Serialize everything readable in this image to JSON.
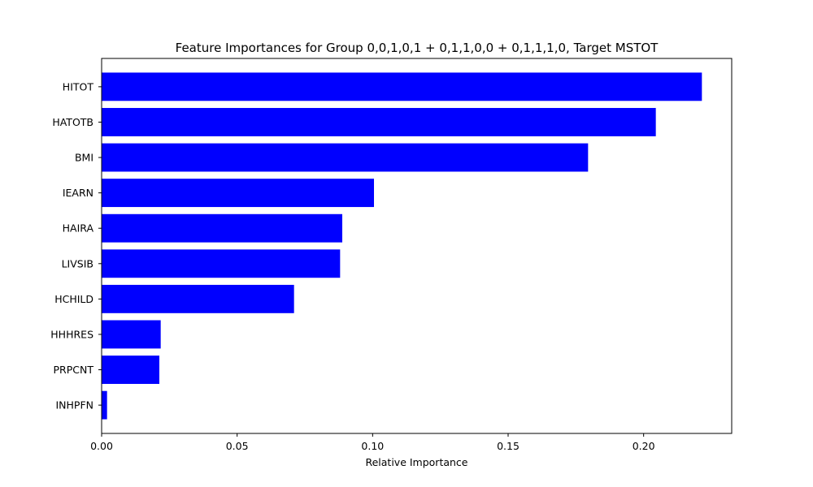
{
  "chart_data": {
    "type": "bar",
    "orientation": "horizontal",
    "title": "Feature Importances for Group 0,0,1,0,1 + 0,1,1,0,0 + 0,1,1,1,0, Target MSTOT",
    "xlabel": "Relative Importance",
    "ylabel": "",
    "categories": [
      "HITOT",
      "HATOTB",
      "BMI",
      "IEARN",
      "HAIRA",
      "LIVSIB",
      "HCHILD",
      "HHHRES",
      "PRPCNT",
      "INHPFN"
    ],
    "values": [
      0.2215,
      0.2045,
      0.1795,
      0.1005,
      0.0888,
      0.088,
      0.071,
      0.0218,
      0.0213,
      0.002
    ],
    "xlim": [
      0,
      0.2325
    ],
    "xticks": [
      0.0,
      0.05,
      0.1,
      0.15,
      0.2
    ],
    "xtick_labels": [
      "0.00",
      "0.05",
      "0.10",
      "0.15",
      "0.20"
    ],
    "bar_color": "#0000ff",
    "grid": false,
    "legend": "none"
  }
}
